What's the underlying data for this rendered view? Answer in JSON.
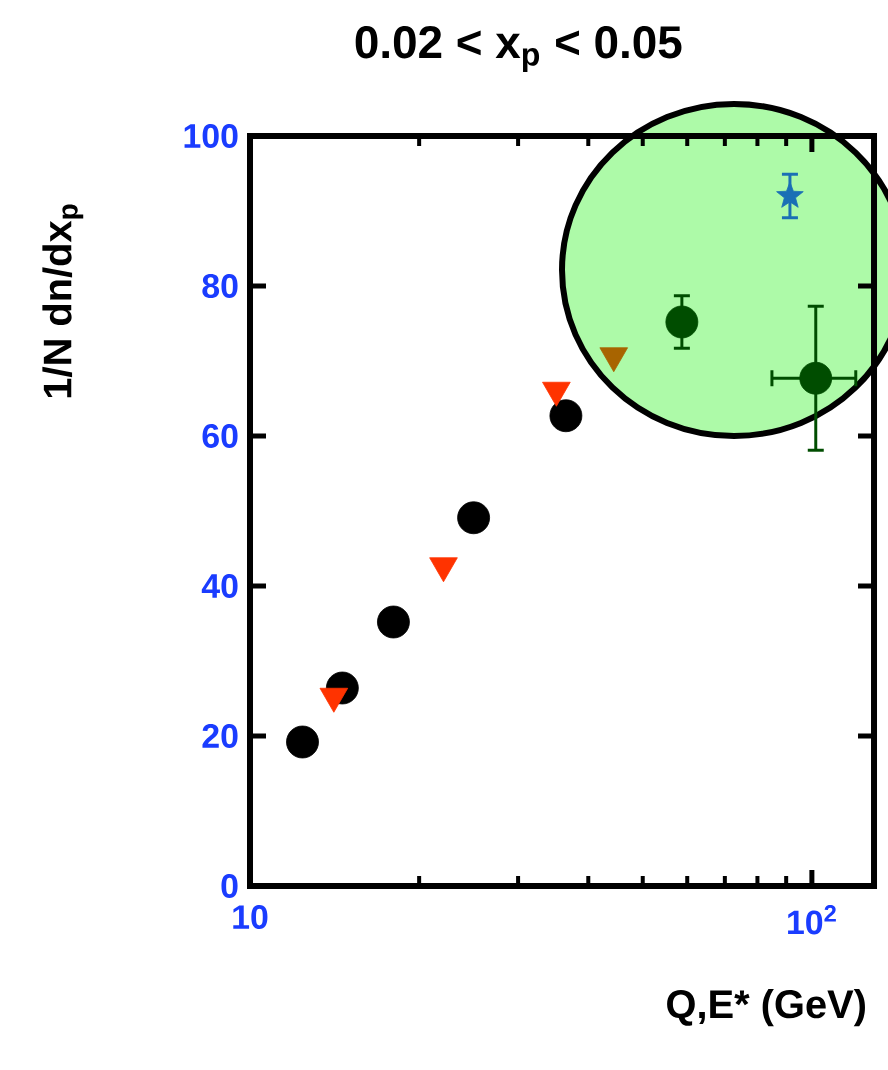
{
  "chart_data": {
    "type": "scatter",
    "title": "0.02 < x$_{p}$ < 0.05",
    "xlabel": "Q,E* (GeV)",
    "ylabel": "1/N dn/dx$_{p}$",
    "log": "x",
    "xlim": [
      10,
      129
    ],
    "ylim": [
      0,
      100
    ],
    "xticks": [
      10,
      {
        "value": 100,
        "label": "10$^{2}$"
      }
    ],
    "yticks": [
      0,
      20,
      40,
      60,
      80,
      100
    ],
    "series": [
      {
        "color": "#000000",
        "marker": "circle",
        "x": [
          12.4,
          14.6,
          18.0,
          25.0,
          36.5
        ],
        "values": [
          19.2,
          26.4,
          35.2,
          49.1,
          62.7
        ]
      },
      {
        "color": "#ff3300",
        "marker": "triangle",
        "x": [
          14.1,
          22.1,
          35.1
        ],
        "values": [
          25.3,
          42.7,
          66.1
        ]
      },
      {
        "color": "#a86400",
        "marker": "triangle",
        "x": [
          44.4
        ],
        "values": [
          70.7
        ]
      },
      {
        "color": "#004d00",
        "marker": "circle",
        "x": [
          58.7,
          101.6
        ],
        "values": [
          75.2,
          67.7
        ],
        "errors": [
          [
            71.7,
            78.7
          ],
          [
            58.1,
            77.3
          ]
        ],
        "xerrors": [
          null,
          [
            84.9,
            119.7
          ]
        ]
      },
      {
        "color": "#1a6fb5",
        "marker": "star",
        "x": [
          91.4
        ],
        "values": [
          92.0
        ],
        "errors": [
          [
            89.1,
            94.9
          ]
        ]
      }
    ]
  }
}
